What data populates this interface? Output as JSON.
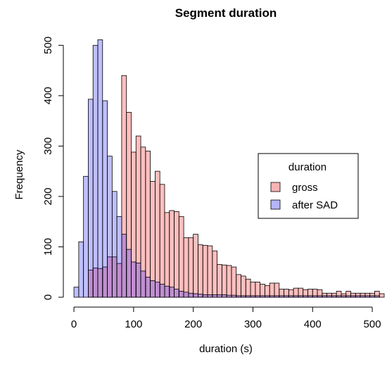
{
  "chart_data": {
    "type": "bar",
    "title": "Segment duration",
    "xlabel": "duration (s)",
    "ylabel": "Frequency",
    "xlim": [
      -6,
      520
    ],
    "ylim": [
      0,
      520
    ],
    "xticks": [
      0,
      100,
      200,
      300,
      400,
      500
    ],
    "yticks": [
      0,
      100,
      200,
      300,
      400,
      500
    ],
    "bin_width": 8,
    "legend": {
      "title": "duration",
      "position": "right",
      "entries": [
        {
          "label": "gross",
          "color": "#F8B4B4"
        },
        {
          "label": "after SAD",
          "color": "#B4B4F8"
        }
      ]
    },
    "series": [
      {
        "name": "gross",
        "color": "#FF000040",
        "bins_start": 24,
        "values": [
          54,
          58,
          57,
          60,
          80,
          80,
          67,
          440,
          367,
          288,
          320,
          298,
          290,
          230,
          250,
          224,
          168,
          172,
          170,
          160,
          118,
          118,
          125,
          104,
          103,
          102,
          92,
          65,
          64,
          63,
          60,
          45,
          42,
          36,
          30,
          30,
          26,
          23,
          28,
          28,
          16,
          16,
          15,
          18,
          18,
          15,
          16,
          16,
          15,
          8,
          8,
          8,
          12,
          7,
          12,
          8,
          8,
          8,
          8,
          8,
          12,
          7,
          10,
          8,
          8,
          5,
          5,
          5,
          5,
          5,
          5,
          5
        ]
      },
      {
        "name": "after SAD",
        "color": "#0000FF40",
        "bins_start": 0,
        "values": [
          20,
          110,
          240,
          393,
          500,
          511,
          390,
          280,
          210,
          160,
          125,
          95,
          70,
          68,
          52,
          40,
          33,
          30,
          26,
          22,
          20,
          16,
          12,
          10,
          8,
          7,
          6,
          5,
          5,
          5,
          5,
          5,
          4,
          4,
          3,
          3,
          3,
          3,
          3,
          3,
          3,
          3,
          3,
          3,
          3,
          3,
          3,
          3,
          3,
          3,
          3,
          3,
          3,
          3,
          3,
          3,
          3,
          3,
          3,
          3,
          3,
          3,
          3,
          3
        ]
      }
    ]
  }
}
